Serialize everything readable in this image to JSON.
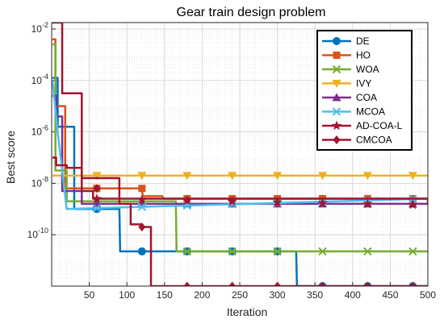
{
  "chart_data": {
    "type": "line",
    "title": "Gear train design problem",
    "xlabel": "Iteration",
    "ylabel": "Best score",
    "xlim": [
      0,
      500
    ],
    "ylim_log10": [
      -12,
      -1.75
    ],
    "yscale": "log",
    "grid": true,
    "minor_grid": true,
    "legend_position": "top-right",
    "x_ticks": [
      {
        "value": 50,
        "label": "50"
      },
      {
        "value": 100,
        "label": "100"
      },
      {
        "value": 150,
        "label": "150"
      },
      {
        "value": 200,
        "label": "200"
      },
      {
        "value": 250,
        "label": "250"
      },
      {
        "value": 300,
        "label": "300"
      },
      {
        "value": 350,
        "label": "350"
      },
      {
        "value": 400,
        "label": "400"
      },
      {
        "value": 450,
        "label": "450"
      },
      {
        "value": 500,
        "label": "500"
      }
    ],
    "y_ticks": [
      {
        "exp": -2,
        "base": "10",
        "sup": "-2"
      },
      {
        "exp": -4,
        "base": "10",
        "sup": "-4"
      },
      {
        "exp": -6,
        "base": "10",
        "sup": "-6"
      },
      {
        "exp": -8,
        "base": "10",
        "sup": "-8"
      },
      {
        "exp": -10,
        "base": "10",
        "sup": "-10"
      }
    ],
    "series": [
      {
        "name": "DE",
        "color": "#0072BD",
        "marker": "circle",
        "points": [
          [
            1,
            -3.9
          ],
          [
            8,
            -5.8
          ],
          [
            30,
            -9.0
          ],
          [
            90,
            -9.0
          ],
          [
            91,
            -10.65
          ],
          [
            325,
            -10.65
          ],
          [
            326,
            -12
          ],
          [
            500,
            -12
          ]
        ]
      },
      {
        "name": "HO",
        "color": "#D95319",
        "marker": "square",
        "points": [
          [
            1,
            -2.4
          ],
          [
            5,
            -5.0
          ],
          [
            18,
            -8.2
          ],
          [
            120,
            -8.2
          ],
          [
            121,
            -8.5
          ],
          [
            147,
            -8.5
          ],
          [
            148,
            -8.6
          ],
          [
            500,
            -8.6
          ]
        ]
      },
      {
        "name": "WOA",
        "color": "#77AC30",
        "marker": "x",
        "points": [
          [
            1,
            -2.6
          ],
          [
            5,
            -7.5
          ],
          [
            20,
            -8.7
          ],
          [
            135,
            -8.7
          ],
          [
            165,
            -8.7
          ],
          [
            166,
            -10.65
          ],
          [
            500,
            -10.65
          ]
        ]
      },
      {
        "name": "IVY",
        "color": "#EDB120",
        "marker": "triangle-down",
        "points": [
          [
            1,
            -7.7
          ],
          [
            500,
            -7.7
          ]
        ]
      },
      {
        "name": "COA",
        "color": "#7E2F8E",
        "marker": "triangle-up",
        "points": [
          [
            1,
            -4.6
          ],
          [
            6,
            -5.4
          ],
          [
            14,
            -8.3
          ],
          [
            40,
            -8.8
          ],
          [
            500,
            -8.8
          ]
        ]
      },
      {
        "name": "MCOA",
        "color": "#4DBEEE",
        "marker": "x",
        "points": [
          [
            1,
            -4.0
          ],
          [
            8,
            -6.0
          ],
          [
            20,
            -9.0
          ],
          [
            500,
            -8.6
          ]
        ]
      },
      {
        "name": "AD-COA-L",
        "color": "#A2142F",
        "marker": "star",
        "points": [
          [
            1,
            -1.75
          ],
          [
            10,
            -1.75
          ],
          [
            14,
            -4.5
          ],
          [
            40,
            -8.3
          ],
          [
            55,
            -8.6
          ],
          [
            500,
            -8.85
          ]
        ]
      },
      {
        "name": "CMCOA",
        "color": "#A2142F",
        "marker": "diamond",
        "points": [
          [
            1,
            -7.0
          ],
          [
            6,
            -7.3
          ],
          [
            20,
            -7.4
          ],
          [
            40,
            -7.8
          ],
          [
            90,
            -8.8
          ],
          [
            105,
            -9.6
          ],
          [
            120,
            -9.7
          ],
          [
            132,
            -12
          ],
          [
            500,
            -12
          ]
        ]
      }
    ]
  }
}
